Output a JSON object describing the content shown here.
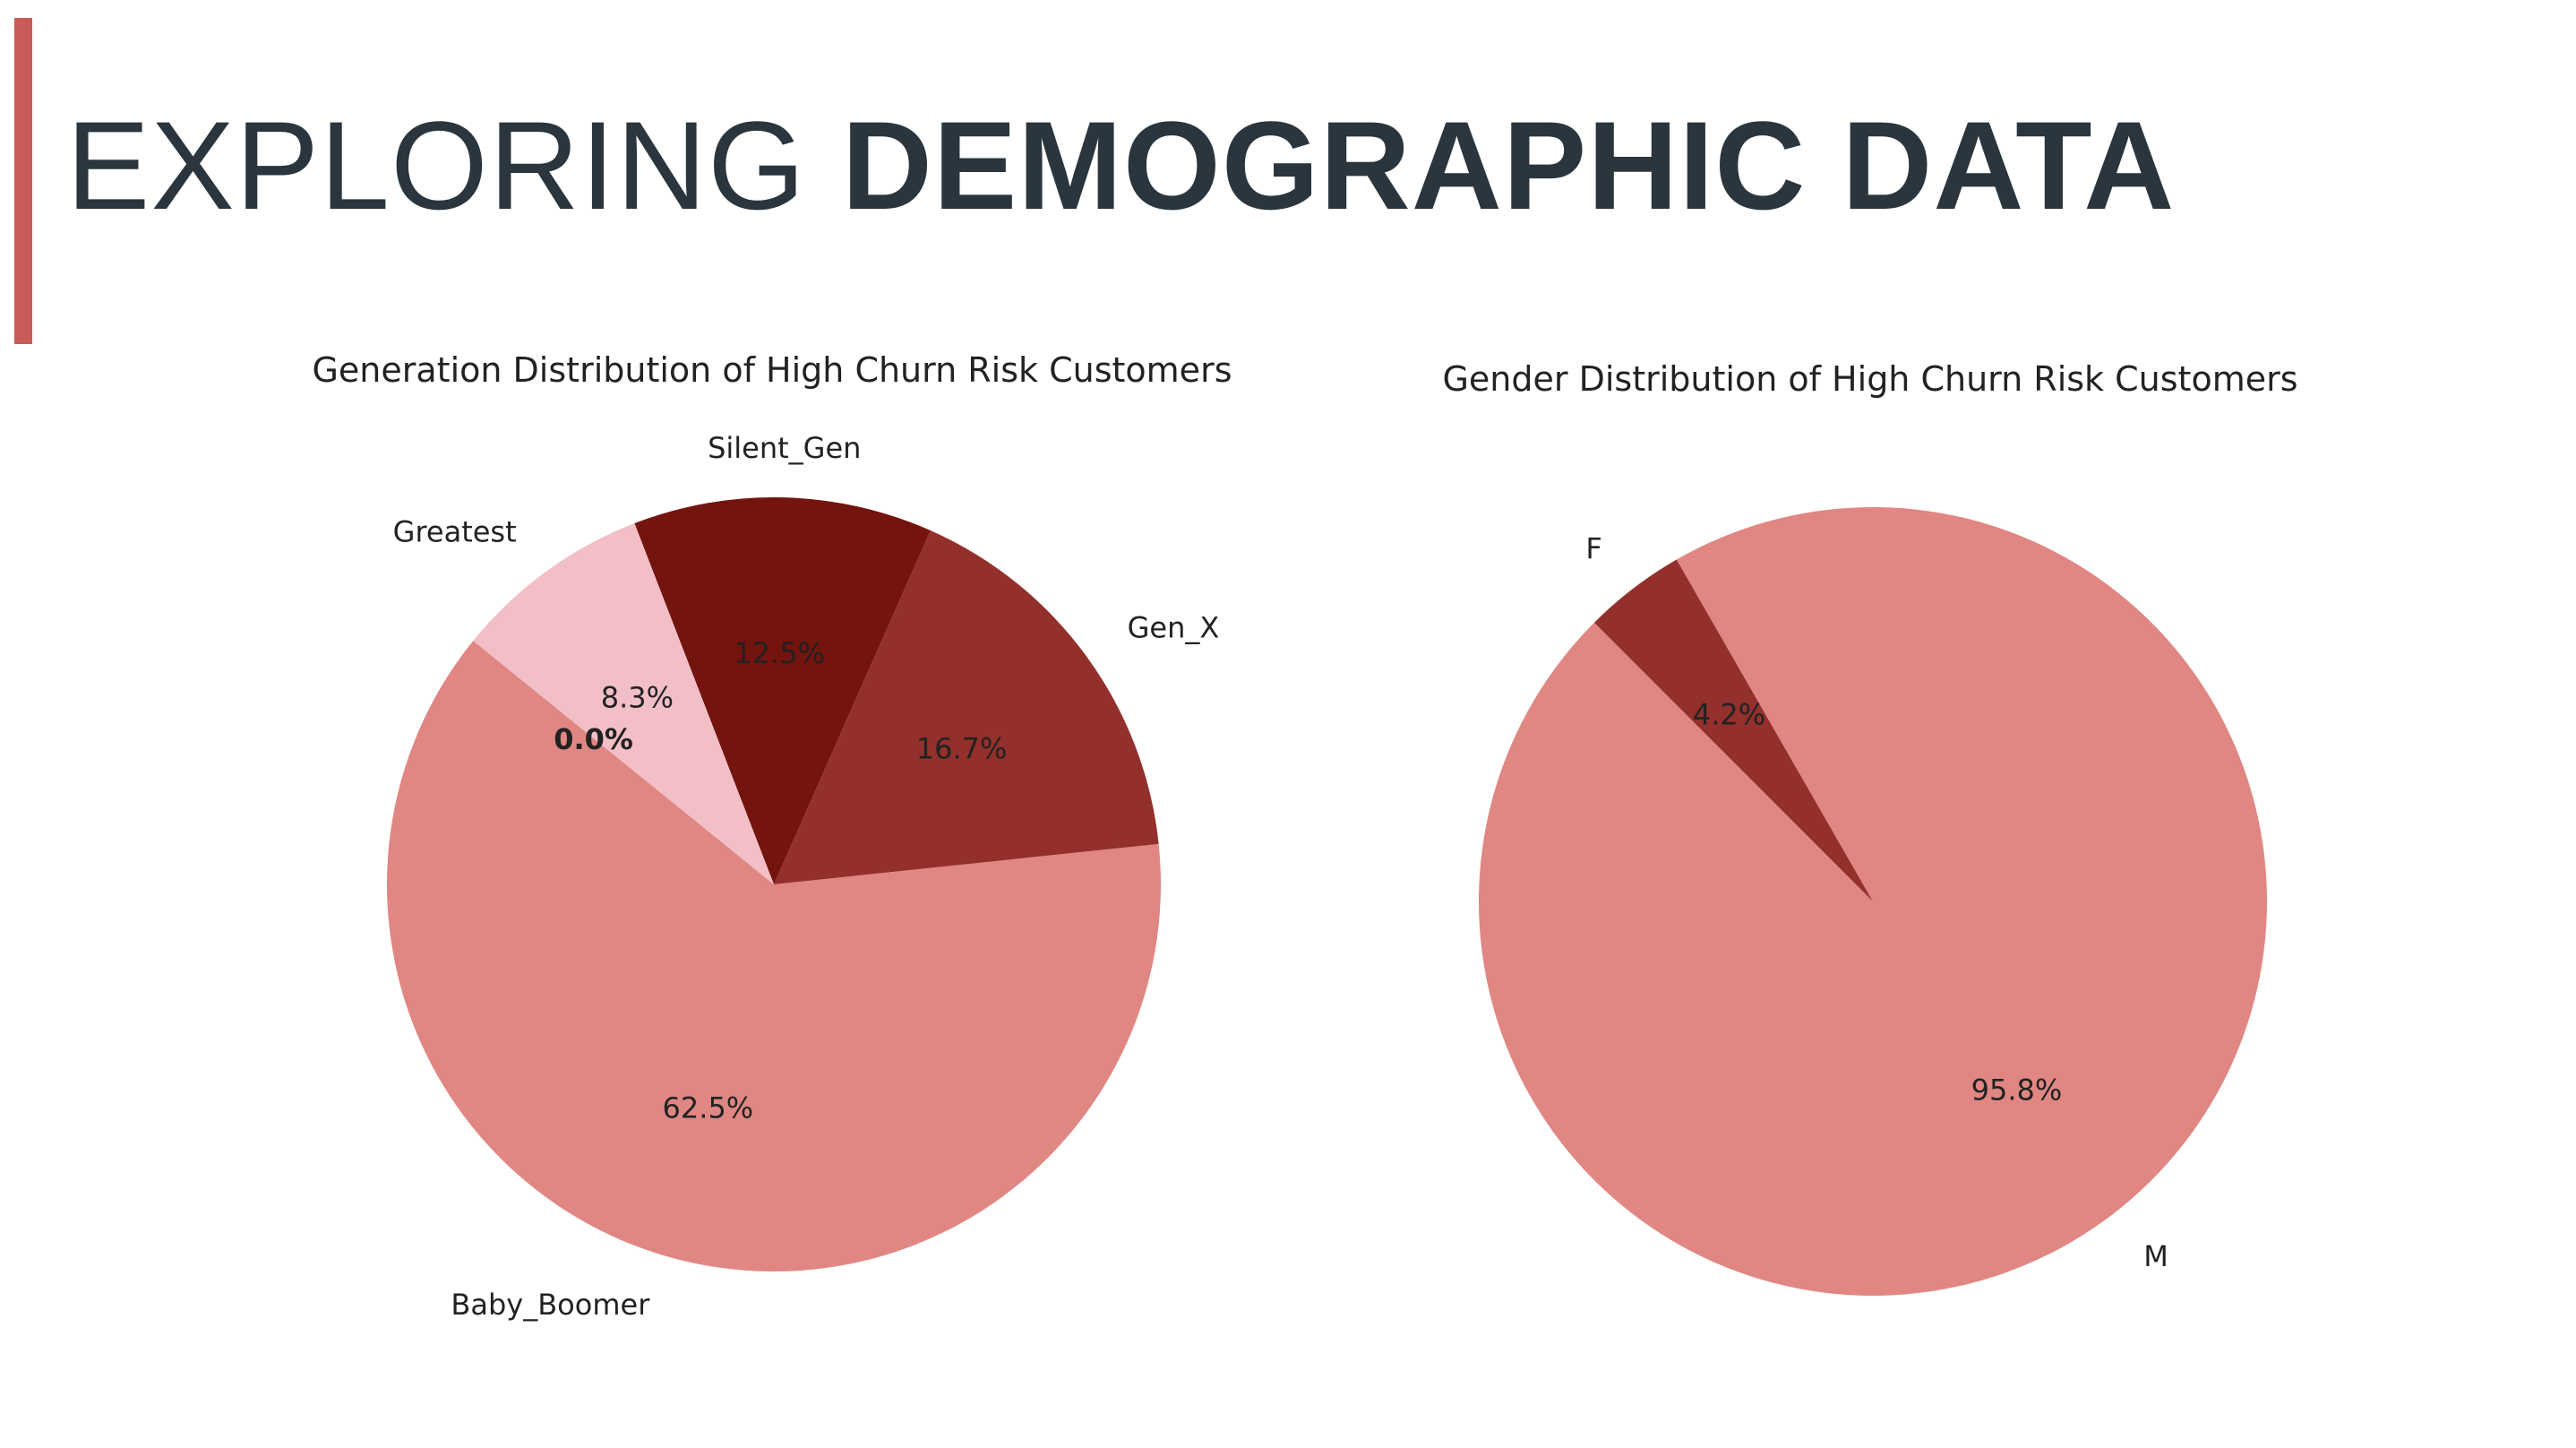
{
  "slide": {
    "title_light": "EXPLORING ",
    "title_bold": "DEMOGRAPHIC DATA",
    "accent_color": "#c95b58"
  },
  "chart_data": [
    {
      "type": "pie",
      "title": "Generation Distribution of High Churn Risk Customers",
      "slices": [
        {
          "label": "Baby_Boomer",
          "value": 62.5,
          "pct_label": "62.5%",
          "color": "#e08783"
        },
        {
          "label": "Gen_X",
          "value": 16.7,
          "pct_label": "16.7%",
          "color": "#93302c"
        },
        {
          "label": "Silent_Gen",
          "value": 12.5,
          "pct_label": "12.5%",
          "color": "#74140e"
        },
        {
          "label": "Greatest",
          "value": 8.3,
          "pct_label": "8.3%",
          "color": "#f2bfc7"
        },
        {
          "label": "",
          "value": 0.0,
          "pct_label": "0.0%",
          "color": "#ffffff"
        }
      ]
    },
    {
      "type": "pie",
      "title": "Gender Distribution of High Churn Risk Customers",
      "slices": [
        {
          "label": "M",
          "value": 95.8,
          "pct_label": "95.8%",
          "color": "#e08783"
        },
        {
          "label": "F",
          "value": 4.2,
          "pct_label": "4.2%",
          "color": "#93302c"
        }
      ]
    }
  ]
}
